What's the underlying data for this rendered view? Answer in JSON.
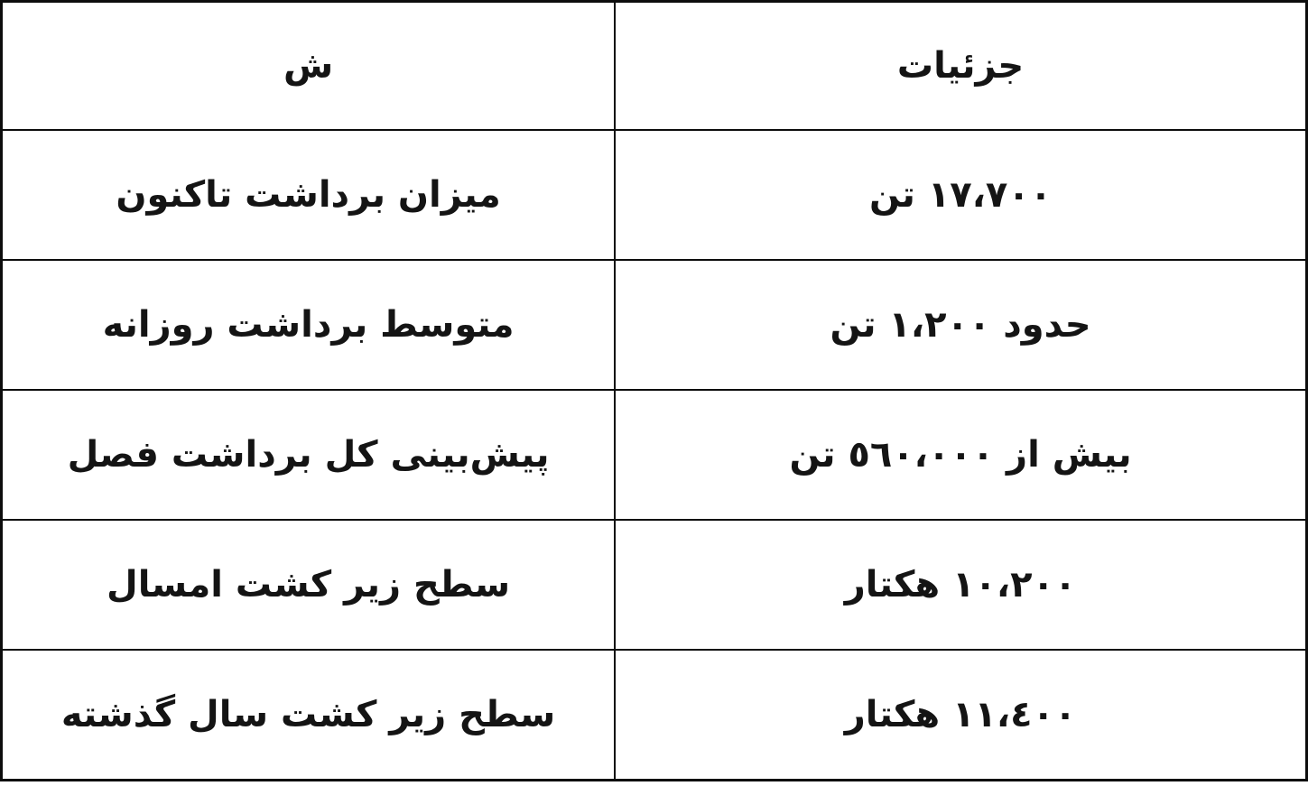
{
  "chart_data": {
    "type": "table",
    "direction": "rtl",
    "language": "fa",
    "columns": [
      "ش",
      "جزئیات"
    ],
    "rows": [
      {
        "label": "میزان برداشت تاکنون",
        "value": "١٧،٧٠٠ تن"
      },
      {
        "label": "متوسط برداشت روزانه",
        "value": "حدود ١،٢٠٠ تن"
      },
      {
        "label": "پیش‌بینی کل برداشت فصل",
        "value": "بیش از ٥٦٠،٠٠٠ تن"
      },
      {
        "label": "سطح زیر کشت امسال",
        "value": "١٠،٢٠٠ هکتار"
      },
      {
        "label": "سطح زیر کشت سال گذشته",
        "value": "١١،٤٠٠ هکتار"
      }
    ],
    "layout": {
      "label_column_side": "left",
      "value_column_side": "right",
      "grid": "all-borders"
    },
    "styles": {
      "border_color": "#0d0d0d",
      "text_color": "#141414",
      "background": "#ffffff"
    }
  }
}
